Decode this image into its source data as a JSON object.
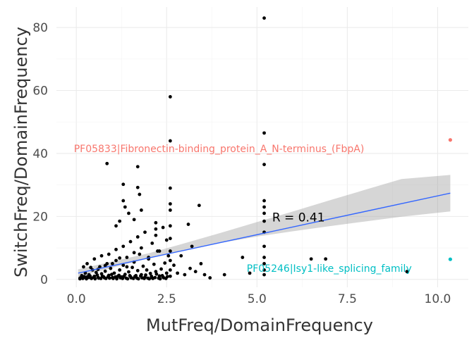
{
  "chart_data": {
    "type": "scatter",
    "title": "",
    "xlabel": "MutFreq/DomainFrequency",
    "ylabel": "SwitchFreq/DomainFrequency",
    "xlim": [
      -0.55,
      10.85
    ],
    "ylim": [
      -2.5,
      86.5
    ],
    "x_ticks": [
      0.0,
      2.5,
      5.0,
      7.5,
      10.0
    ],
    "x_tick_labels": [
      "0.0",
      "2.5",
      "5.0",
      "7.5",
      "10.0"
    ],
    "y_ticks": [
      0,
      20,
      40,
      60,
      80
    ],
    "y_tick_labels": [
      "0",
      "20",
      "40",
      "60",
      "80"
    ],
    "grid": true,
    "points": [
      [
        0.1,
        0.4
      ],
      [
        0.15,
        1.2
      ],
      [
        0.2,
        0.6
      ],
      [
        0.25,
        2.0
      ],
      [
        0.3,
        0.8
      ],
      [
        0.35,
        1.5
      ],
      [
        0.4,
        0.5
      ],
      [
        0.45,
        3.0
      ],
      [
        0.5,
        1.0
      ],
      [
        0.55,
        2.2
      ],
      [
        0.6,
        0.7
      ],
      [
        0.65,
        4.0
      ],
      [
        0.7,
        1.8
      ],
      [
        0.75,
        0.9
      ],
      [
        0.8,
        2.6
      ],
      [
        0.85,
        5.0
      ],
      [
        0.9,
        1.3
      ],
      [
        0.95,
        3.5
      ],
      [
        1.0,
        0.6
      ],
      [
        1.05,
        2.0
      ],
      [
        1.1,
        6.0
      ],
      [
        1.15,
        1.0
      ],
      [
        1.2,
        3.0
      ],
      [
        1.25,
        0.8
      ],
      [
        1.3,
        4.5
      ],
      [
        1.35,
        1.6
      ],
      [
        1.4,
        7.0
      ],
      [
        1.45,
        2.4
      ],
      [
        1.5,
        0.9
      ],
      [
        1.55,
        3.8
      ],
      [
        1.6,
        5.5
      ],
      [
        1.65,
        1.2
      ],
      [
        1.7,
        2.8
      ],
      [
        1.75,
        8.0
      ],
      [
        1.8,
        1.5
      ],
      [
        1.85,
        4.2
      ],
      [
        1.9,
        0.7
      ],
      [
        1.95,
        3.0
      ],
      [
        2.0,
        6.5
      ],
      [
        2.05,
        1.9
      ],
      [
        2.1,
        0.5
      ],
      [
        2.15,
        4.8
      ],
      [
        2.2,
        2.5
      ],
      [
        2.25,
        9.0
      ],
      [
        2.3,
        1.1
      ],
      [
        2.35,
        3.3
      ],
      [
        2.4,
        0.8
      ],
      [
        2.45,
        5.2
      ],
      [
        2.5,
        2.0
      ],
      [
        2.55,
        7.5
      ],
      [
        0.2,
        4.0
      ],
      [
        0.3,
        5.0
      ],
      [
        0.4,
        3.8
      ],
      [
        0.5,
        6.5
      ],
      [
        0.6,
        3.2
      ],
      [
        0.7,
        7.5
      ],
      [
        0.8,
        4.4
      ],
      [
        0.9,
        8.0
      ],
      [
        1.0,
        5.0
      ],
      [
        1.1,
        9.5
      ],
      [
        1.2,
        6.8
      ],
      [
        1.3,
        10.5
      ],
      [
        1.4,
        4.0
      ],
      [
        1.5,
        12.0
      ],
      [
        1.6,
        8.5
      ],
      [
        1.7,
        13.5
      ],
      [
        1.8,
        10.0
      ],
      [
        1.9,
        15.0
      ],
      [
        2.0,
        7.0
      ],
      [
        2.1,
        11.5
      ],
      [
        2.2,
        14.0
      ],
      [
        2.3,
        9.0
      ],
      [
        2.4,
        16.5
      ],
      [
        2.5,
        12.5
      ],
      [
        0.85,
        36.8
      ],
      [
        1.3,
        30.2
      ],
      [
        1.3,
        25.0
      ],
      [
        1.35,
        23.0
      ],
      [
        1.7,
        35.8
      ],
      [
        1.7,
        29.2
      ],
      [
        1.75,
        27.0
      ],
      [
        1.45,
        21.0
      ],
      [
        1.6,
        19.0
      ],
      [
        1.1,
        17.0
      ],
      [
        1.2,
        18.5
      ],
      [
        1.8,
        22.0
      ],
      [
        2.2,
        18.0
      ],
      [
        2.2,
        16.0
      ],
      [
        2.6,
        58.0
      ],
      [
        2.6,
        44.0
      ],
      [
        2.6,
        29.0
      ],
      [
        2.6,
        24.0
      ],
      [
        2.6,
        22.0
      ],
      [
        2.6,
        17.0
      ],
      [
        2.6,
        13.0
      ],
      [
        2.6,
        9.0
      ],
      [
        2.6,
        6.0
      ],
      [
        2.6,
        3.0
      ],
      [
        2.6,
        1.0
      ],
      [
        2.7,
        4.5
      ],
      [
        2.8,
        2.0
      ],
      [
        2.9,
        7.5
      ],
      [
        3.0,
        1.5
      ],
      [
        3.1,
        17.5
      ],
      [
        3.15,
        3.5
      ],
      [
        3.2,
        10.5
      ],
      [
        3.3,
        2.5
      ],
      [
        3.4,
        23.5
      ],
      [
        3.45,
        5.0
      ],
      [
        3.55,
        1.5
      ],
      [
        3.7,
        0.5
      ],
      [
        4.1,
        1.5
      ],
      [
        4.6,
        7.0
      ],
      [
        4.8,
        2.0
      ],
      [
        5.2,
        83.0
      ],
      [
        5.2,
        46.5
      ],
      [
        5.2,
        36.5
      ],
      [
        5.2,
        25.0
      ],
      [
        5.2,
        23.0
      ],
      [
        5.2,
        21.0
      ],
      [
        5.2,
        18.5
      ],
      [
        5.2,
        15.0
      ],
      [
        5.2,
        10.5
      ],
      [
        5.2,
        7.0
      ],
      [
        5.2,
        5.0
      ],
      [
        5.2,
        3.0
      ],
      [
        5.2,
        1.5
      ],
      [
        6.5,
        6.5
      ],
      [
        6.9,
        6.5
      ],
      [
        9.15,
        2.5
      ],
      [
        0.1,
        0.2
      ],
      [
        0.12,
        0.5
      ],
      [
        0.18,
        0.3
      ],
      [
        0.22,
        0.9
      ],
      [
        0.28,
        0.2
      ],
      [
        0.33,
        0.6
      ],
      [
        0.38,
        1.1
      ],
      [
        0.42,
        0.3
      ],
      [
        0.48,
        0.7
      ],
      [
        0.52,
        0.2
      ],
      [
        0.58,
        1.4
      ],
      [
        0.62,
        0.4
      ],
      [
        0.68,
        0.3
      ],
      [
        0.72,
        1.0
      ],
      [
        0.78,
        0.5
      ],
      [
        0.82,
        0.3
      ],
      [
        0.88,
        0.9
      ],
      [
        0.92,
        0.4
      ],
      [
        0.98,
        1.6
      ],
      [
        1.02,
        0.3
      ],
      [
        1.08,
        0.8
      ],
      [
        1.12,
        0.2
      ],
      [
        1.18,
        1.3
      ],
      [
        1.22,
        0.5
      ],
      [
        1.28,
        0.3
      ],
      [
        1.32,
        1.0
      ],
      [
        1.38,
        0.4
      ],
      [
        1.42,
        0.2
      ],
      [
        1.48,
        1.2
      ],
      [
        1.52,
        0.5
      ],
      [
        1.58,
        0.3
      ],
      [
        1.62,
        0.9
      ],
      [
        1.68,
        0.4
      ],
      [
        1.72,
        0.2
      ],
      [
        1.78,
        1.1
      ],
      [
        1.82,
        0.5
      ],
      [
        1.88,
        0.3
      ],
      [
        1.92,
        1.4
      ],
      [
        1.98,
        0.4
      ],
      [
        2.02,
        0.2
      ],
      [
        2.08,
        1.0
      ],
      [
        2.12,
        0.3
      ],
      [
        2.18,
        0.6
      ],
      [
        2.22,
        1.7
      ],
      [
        2.28,
        0.4
      ],
      [
        2.32,
        0.2
      ],
      [
        2.38,
        1.2
      ],
      [
        2.42,
        0.5
      ],
      [
        2.48,
        0.3
      ],
      [
        2.52,
        0.9
      ]
    ],
    "highlight_points": [
      {
        "x": 10.35,
        "y": 44.3,
        "color": "#F8766D"
      },
      {
        "x": 10.35,
        "y": 6.4,
        "color": "#00BFC4"
      }
    ],
    "annotations": [
      {
        "text": "PF05833|Fibronectin-binding_protein_A_N-terminus_(FbpA)",
        "x": 3.95,
        "y": 41.5,
        "color": "#F8766D"
      },
      {
        "text": "PF05246|Isy1-like_splicing_family",
        "x": 7.0,
        "y": 3.5,
        "color": "#00BFC4"
      }
    ],
    "fit_line": {
      "x": [
        0.05,
        10.35
      ],
      "y": [
        2.0,
        27.4
      ],
      "color": "#3366FF"
    },
    "confidence_band": {
      "x": [
        0.05,
        1.0,
        2.0,
        3.0,
        4.0,
        5.0,
        6.0,
        7.0,
        8.0,
        9.0,
        10.35
      ],
      "lower": [
        0.8,
        3.7,
        6.7,
        9.3,
        11.6,
        13.6,
        15.3,
        16.9,
        18.4,
        19.9,
        21.6
      ],
      "upper": [
        3.2,
        5.7,
        8.3,
        11.5,
        14.8,
        18.2,
        21.6,
        25.1,
        28.5,
        31.9,
        33.2
      ],
      "color": "#999999"
    },
    "stat_label": {
      "text": "R = 0.41",
      "x": 5.42,
      "y": 19.7
    }
  }
}
